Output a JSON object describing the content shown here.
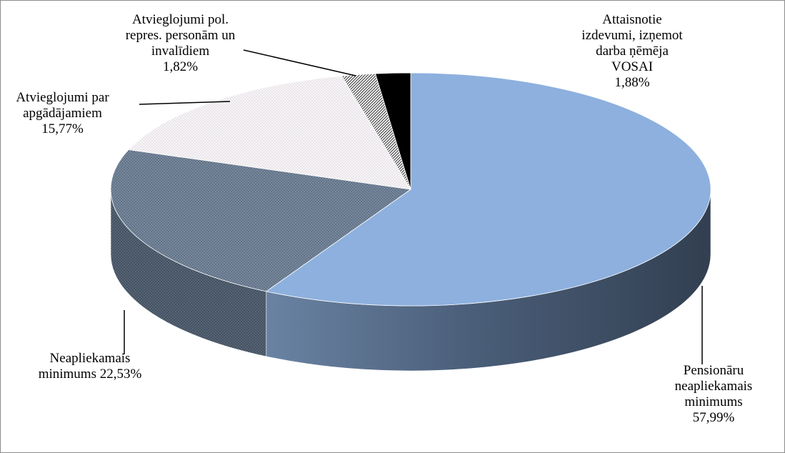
{
  "chart_data": {
    "type": "pie",
    "title": "",
    "three_d": true,
    "legend": "none",
    "slices": [
      {
        "name": "Pensionāru neapliekamais minimums",
        "value": 57.99,
        "label_lines": [
          "Pensionāru",
          "neapliekamais",
          "minimums",
          "57,99%"
        ],
        "color": "#8db0de",
        "side_color": "#3f5067",
        "pattern": "solid"
      },
      {
        "name": "Neapliekamais minimums",
        "value": 22.53,
        "label_lines": [
          "Neapliekamais",
          "minimums 22,53%"
        ],
        "color": "#7d8ea3",
        "side_color": "#5b6a7c",
        "pattern": "crosshatch"
      },
      {
        "name": "Atvieglojumi par apgādājamiem",
        "value": 15.77,
        "label_lines": [
          "Atvieglojumi par",
          "apgādājamiem",
          "15,77%"
        ],
        "color": "#f4f1f4",
        "side_color": "#e0dde0",
        "pattern": "dots"
      },
      {
        "name": "Atvieglojumi pol. repres. personām un invalīdiem",
        "value": 1.82,
        "label_lines": [
          "Atvieglojumi pol.",
          "repres. personām un",
          "invalīdiem",
          "1,82%"
        ],
        "color": "#ffffff",
        "side_color": "#9a9a9a",
        "pattern": "diagonal"
      },
      {
        "name": "Attaisnotie izdevumi, izņemot darba ņēmēja VOSAI",
        "value": 1.88,
        "label_lines": [
          "Attaisnotie",
          "izdevumi, izņemot",
          "darba ņēmēja",
          "VOSAI",
          "1,88%"
        ],
        "color": "#000000",
        "side_color": "#000000",
        "pattern": "solid"
      }
    ]
  }
}
